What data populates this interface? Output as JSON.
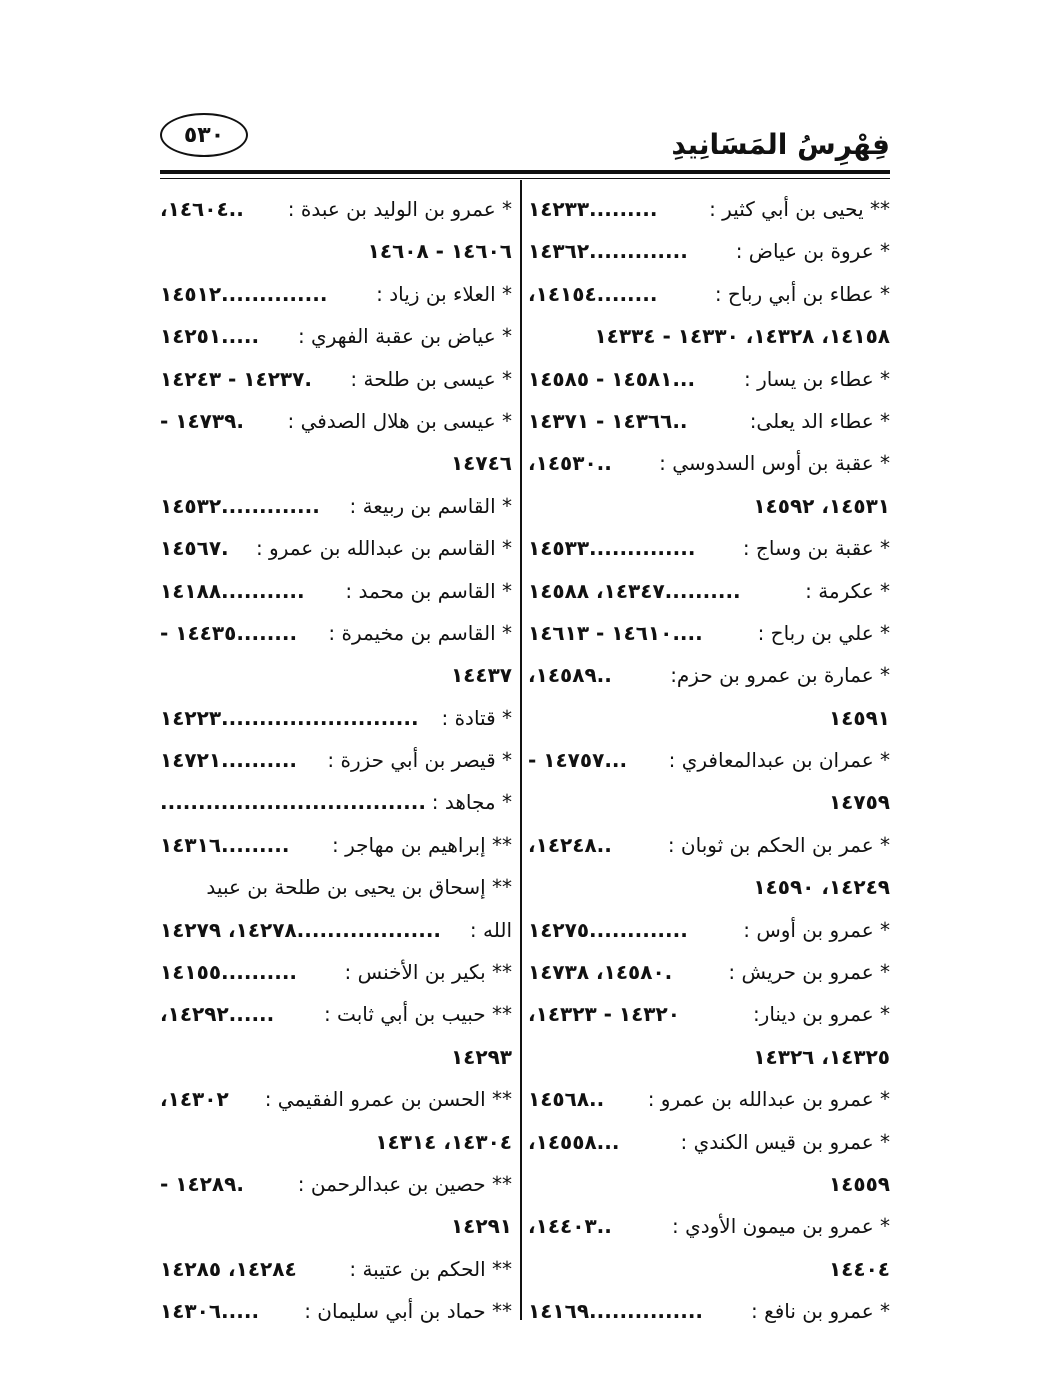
{
  "header": {
    "title": "فِهْرِسُ المَسَانِيدِ",
    "page_number": "٥٣٠"
  },
  "right_column": [
    {
      "name": "** يحيى بن أبي كثير :",
      "refs": ".........١٤٢٣٣"
    },
    {
      "name": "* عروة بن عياض :",
      "refs": ".............١٤٣٦٢"
    },
    {
      "name": "* عطاء بن أبي رباح :",
      "refs": "........١٤١٥٤،"
    },
    {
      "name": "",
      "refs": "١٤١٥٨، ١٤٣٢٨، ١٤٣٣٠ - ١٤٣٣٤"
    },
    {
      "name": "* عطاء بن يسار :",
      "refs": "...١٤٥٨١ - ١٤٥٨٥"
    },
    {
      "name": "* عطاء الد يعلى:",
      "refs": "..١٤٣٦٦ - ١٤٣٧١"
    },
    {
      "name": "* عقبة بن أوس السدوسي :",
      "refs": "..١٤٥٣٠،"
    },
    {
      "name": "",
      "refs": "١٤٥٣١، ١٤٥٩٢"
    },
    {
      "name": "* عقبة بن وساج :",
      "refs": "..............١٤٥٣٣"
    },
    {
      "name": "* عكرمة :",
      "refs": "..........١٤٣٤٧، ١٤٥٨٨"
    },
    {
      "name": "* علي بن رباح :",
      "refs": "....١٤٦١٠ - ١٤٦١٣"
    },
    {
      "name": "* عمارة بن عمرو بن حزم:",
      "refs": "..١٤٥٨٩،"
    },
    {
      "name": "",
      "refs": "١٤٥٩١"
    },
    {
      "name": "* عمران بن عبدالمعافري :",
      "refs": "...١٤٧٥٧ -"
    },
    {
      "name": "",
      "refs": "١٤٧٥٩"
    },
    {
      "name": "* عمر بن الحكم بن ثوبان :",
      "refs": "..١٤٢٤٨،"
    },
    {
      "name": "",
      "refs": "١٤٢٤٩، ١٤٥٩٠"
    },
    {
      "name": "* عمرو بن أوس :",
      "refs": ".............١٤٢٧٥"
    },
    {
      "name": "* عمرو بن حريش :",
      "refs": ".١٤٥٨٠، ١٤٧٣٨"
    },
    {
      "name": "* عمرو بن دينار:",
      "refs": "١٤٣٢٠ - ١٤٣٢٣،"
    },
    {
      "name": "",
      "refs": "١٤٣٢٥، ١٤٣٢٦"
    },
    {
      "name": "* عمرو بن عبدالله بن عمرو :",
      "refs": "..١٤٥٦٨"
    },
    {
      "name": "* عمرو بن قيس الكندي :",
      "refs": "...١٤٥٥٨،"
    },
    {
      "name": "",
      "refs": "١٤٥٥٩"
    },
    {
      "name": "* عمرو بن ميمون الأودي :",
      "refs": "..١٤٤٠٣،"
    },
    {
      "name": "",
      "refs": "١٤٤٠٤"
    },
    {
      "name": "* عمرو بن نافع :",
      "refs": "...............١٤١٦٩"
    }
  ],
  "left_column": [
    {
      "name": "* عمرو بن الوليد بن عبدة :",
      "refs": "..١٤٦٠٤،"
    },
    {
      "name": "",
      "refs": "١٤٦٠٦ - ١٤٦٠٨"
    },
    {
      "name": "* العلاء بن زياد :",
      "refs": "..............١٤٥١٢"
    },
    {
      "name": "* عياض بن عقبة الفهري :",
      "refs": ".....١٤٢٥١"
    },
    {
      "name": "* عيسى بن طلحة :",
      "refs": ".١٤٢٣٧ - ١٤٢٤٣"
    },
    {
      "name": "* عيسى بن هلال الصدفي :",
      "refs": ".١٤٧٣٩ -"
    },
    {
      "name": "",
      "refs": "١٤٧٤٦"
    },
    {
      "name": "* القاسم بن ربيعة :",
      "refs": ".............١٤٥٣٢"
    },
    {
      "name": "* القاسم بن عبدالله بن عمرو :",
      "refs": ".١٤٥٦٧"
    },
    {
      "name": "* القاسم بن محمد :",
      "refs": "...........١٤١٨٨"
    },
    {
      "name": "* القاسم بن مخيمرة :",
      "refs": "........١٤٤٣٥ -"
    },
    {
      "name": "",
      "refs": "١٤٤٣٧"
    },
    {
      "name": "* قتادة :",
      "refs": "..........................١٤٢٢٣"
    },
    {
      "name": "* قيصر بن أبي حزرة :",
      "refs": "..........١٤٧٢١"
    },
    {
      "name": "* مجاهد :",
      "refs": "..................................."
    },
    {
      "name": "** إبراهيم بن مهاجر :",
      "refs": ".........١٤٣١٦"
    },
    {
      "name": "** إسحاق بن يحيى بن طلحة بن عبيد",
      "refs": ""
    },
    {
      "name": "الله :",
      "refs": "...................١٤٢٧٨، ١٤٢٧٩"
    },
    {
      "name": "** بكير بن الأخنس :",
      "refs": "..........١٤١٥٥"
    },
    {
      "name": "** حبيب بن أبي ثابت :",
      "refs": "......١٤٢٩٢،"
    },
    {
      "name": "",
      "refs": "١٤٢٩٣"
    },
    {
      "name": "** الحسن بن عمرو الفقيمي :",
      "refs": "١٤٣٠٢،"
    },
    {
      "name": "",
      "refs": "١٤٣٠٤، ١٤٣١٤"
    },
    {
      "name": "** حصين بن عبدالرحمن :",
      "refs": ".١٤٢٨٩ -"
    },
    {
      "name": "",
      "refs": "١٤٢٩١"
    },
    {
      "name": "** الحكم بن عتيبة :",
      "refs": "١٤٢٨٤، ١٤٢٨٥"
    },
    {
      "name": "** حماد بن أبي سليمان :",
      "refs": ".....١٤٣٠٦"
    }
  ]
}
